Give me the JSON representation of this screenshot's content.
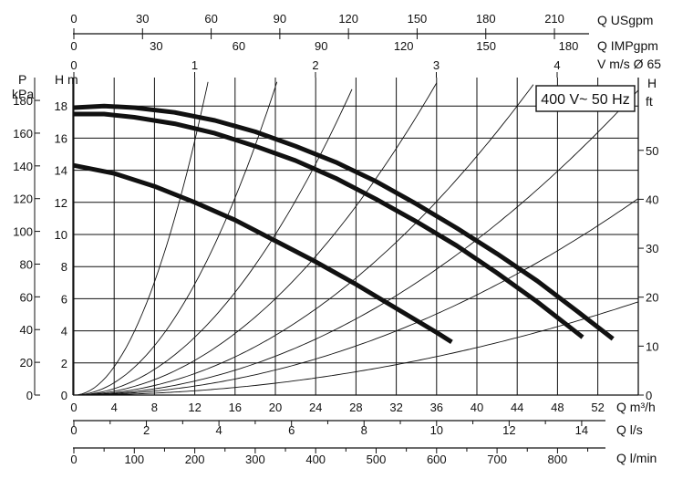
{
  "chart_data": {
    "type": "line",
    "title": "400 V~ 50 Hz",
    "grid": true,
    "x_primary": {
      "label": "Q m³/h",
      "lim": [
        0,
        56
      ],
      "ticks": [
        "0",
        "4",
        "8",
        "12",
        "16",
        "20",
        "24",
        "28",
        "32",
        "36",
        "40",
        "44",
        "48",
        "52"
      ]
    },
    "y_primary": {
      "label": "H m",
      "lim": [
        0,
        19.5
      ],
      "ticks": [
        "0",
        "2",
        "4",
        "6",
        "8",
        "10",
        "12",
        "14",
        "16",
        "18"
      ]
    },
    "y_left_outer": {
      "label_line1": "P",
      "label_line2": "kPa",
      "ticks": [
        "0",
        "20",
        "40",
        "60",
        "80",
        "100",
        "120",
        "140",
        "160",
        "180"
      ]
    },
    "y_right": {
      "label_line1": "H",
      "label_line2": "ft",
      "ticks": [
        "0",
        "10",
        "20",
        "30",
        "40",
        "50"
      ]
    },
    "top_axes": [
      {
        "label": "Q USgpm",
        "ticks": [
          "0",
          "30",
          "60",
          "90",
          "120",
          "150",
          "180",
          "210"
        ]
      },
      {
        "label": "Q IMPgpm",
        "ticks": [
          "0",
          "30",
          "60",
          "90",
          "120",
          "150",
          "180"
        ]
      },
      {
        "label": "V m/s Ø 65",
        "ticks": [
          "0",
          "1",
          "2",
          "3",
          "4"
        ]
      }
    ],
    "bottom_axes": [
      {
        "label": "Q l/s",
        "ticks": [
          "0",
          "2",
          "4",
          "6",
          "8",
          "10",
          "12",
          "14"
        ]
      },
      {
        "label": "Q l/min",
        "ticks": [
          "0",
          "100",
          "200",
          "300",
          "400",
          "500",
          "600",
          "700",
          "800"
        ]
      }
    ],
    "series": [
      {
        "x": [
          0,
          3,
          6,
          10,
          14,
          18,
          22,
          26,
          30,
          34,
          38,
          42,
          46,
          50,
          53.5
        ],
        "y": [
          17.9,
          18.0,
          17.9,
          17.6,
          17.1,
          16.4,
          15.5,
          14.5,
          13.3,
          11.9,
          10.4,
          8.8,
          7.1,
          5.2,
          3.5
        ]
      },
      {
        "x": [
          0,
          3,
          6,
          10,
          14,
          18,
          22,
          26,
          30,
          34,
          38,
          42,
          46,
          50.5
        ],
        "y": [
          17.5,
          17.5,
          17.3,
          16.9,
          16.3,
          15.5,
          14.6,
          13.5,
          12.2,
          10.8,
          9.3,
          7.6,
          5.8,
          3.6
        ]
      },
      {
        "x": [
          0,
          4,
          8,
          12,
          16,
          20,
          24,
          28,
          32,
          36,
          37.5
        ],
        "y": [
          14.3,
          13.8,
          13.0,
          12.0,
          10.9,
          9.6,
          8.3,
          6.9,
          5.4,
          3.9,
          3.3
        ]
      }
    ],
    "system_curves_k": [
      0.11,
      0.048,
      0.025,
      0.015,
      0.0093,
      0.00605,
      0.0039,
      0.00185
    ]
  }
}
